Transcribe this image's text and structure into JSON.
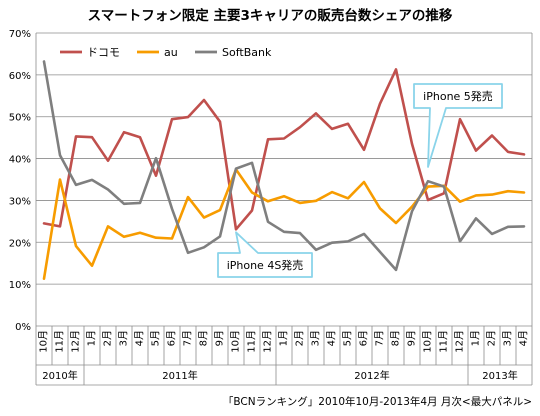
{
  "chart_data": {
    "type": "line",
    "title": "スマートフォン限定 主要3キャリアの販売台数シェアの推移",
    "source": "「BCNランキング」2010年10月-2013年4月 月次<最大パネル>",
    "ylim": [
      0,
      70
    ],
    "yticks": [
      "0%",
      "10%",
      "20%",
      "30%",
      "40%",
      "50%",
      "60%",
      "70%"
    ],
    "grid": true,
    "legend_position": "top-left",
    "categories": [
      "10月",
      "11月",
      "12月",
      "1月",
      "2月",
      "3月",
      "4月",
      "5月",
      "6月",
      "7月",
      "8月",
      "9月",
      "10月",
      "11月",
      "12月",
      "1月",
      "2月",
      "3月",
      "4月",
      "5月",
      "6月",
      "7月",
      "8月",
      "9月",
      "10月",
      "11月",
      "12月",
      "1月",
      "2月",
      "3月",
      "4月"
    ],
    "year_groups": [
      {
        "label": "2010年",
        "count": 3
      },
      {
        "label": "2011年",
        "count": 12
      },
      {
        "label": "2012年",
        "count": 12
      },
      {
        "label": "2013年",
        "count": 4
      }
    ],
    "series": [
      {
        "name": "ドコモ",
        "color": "#c0504d",
        "values": [
          24.5,
          23.8,
          45.3,
          45.1,
          39.5,
          46.3,
          45.1,
          35.9,
          49.4,
          49.9,
          54.0,
          48.8,
          23.1,
          27.6,
          44.6,
          44.8,
          47.5,
          50.8,
          47.1,
          48.3,
          42.1,
          53.1,
          61.3,
          43.5,
          30.1,
          31.7,
          49.4,
          41.9,
          45.5,
          41.6,
          41.0
        ]
      },
      {
        "name": "au",
        "color": "#f79c00",
        "values": [
          11.3,
          35.0,
          19.1,
          14.4,
          23.8,
          21.3,
          22.3,
          21.1,
          20.9,
          30.8,
          25.9,
          27.7,
          37.4,
          31.9,
          29.8,
          31.0,
          29.4,
          29.9,
          32.0,
          30.5,
          34.4,
          28.1,
          24.6,
          28.5,
          33.3,
          33.5,
          29.7,
          31.2,
          31.4,
          32.2,
          31.9
        ]
      },
      {
        "name": "SoftBank",
        "color": "#7f7f7f",
        "values": [
          63.2,
          40.8,
          33.7,
          34.9,
          32.6,
          29.2,
          29.4,
          40.1,
          28.0,
          17.5,
          18.8,
          21.4,
          37.6,
          39.0,
          24.9,
          22.5,
          22.2,
          18.2,
          19.9,
          20.2,
          22.0,
          17.7,
          13.4,
          27.4,
          34.6,
          33.3,
          20.2,
          25.7,
          22.0,
          23.7,
          23.8
        ]
      }
    ],
    "annotations": [
      {
        "text": "iPhone 4S発売",
        "category_index": 12
      },
      {
        "text": "iPhone 5発売",
        "category_index": 24
      }
    ]
  }
}
